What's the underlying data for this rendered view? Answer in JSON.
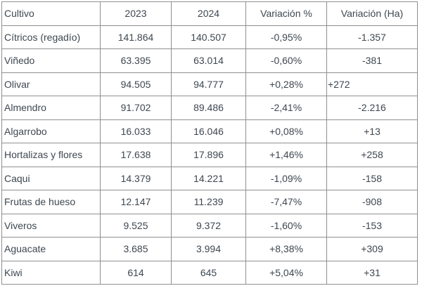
{
  "colors": {
    "border": "#8f8f8f",
    "text": "#3e4750",
    "background": "#ffffff"
  },
  "chart_data": {
    "type": "table",
    "title": "",
    "columns": [
      "Cultivo",
      "2023",
      "2024",
      "Variación %",
      "Variación (Ha)"
    ],
    "rows": [
      [
        "Cítricos (regadío)",
        "141.864",
        "140.507",
        "-0,95%",
        "-1.357"
      ],
      [
        "Viñedo",
        "63.395",
        "63.014",
        "-0,60%",
        "-381"
      ],
      [
        "Olivar",
        "94.505",
        "94.777",
        "+0,28%",
        "+272"
      ],
      [
        "Almendro",
        "91.702",
        "89.486",
        "-2,41%",
        "-2.216"
      ],
      [
        "Algarrobo",
        "16.033",
        "16.046",
        "+0,08%",
        "+13"
      ],
      [
        "Hortalizas y flores",
        "17.638",
        "17.896",
        "+1,46%",
        "+258"
      ],
      [
        "Caqui",
        "14.379",
        "14.221",
        "-1,09%",
        "-158"
      ],
      [
        "Frutas de hueso",
        "12.147",
        "11.239",
        "-7,47%",
        "-908"
      ],
      [
        "Viveros",
        "9.525",
        "9.372",
        "-1,60%",
        "-153"
      ],
      [
        "Aguacate",
        "3.685",
        "3.994",
        "+8,38%",
        "+309"
      ],
      [
        "Kiwi",
        "614",
        "645",
        "+5,04%",
        "+31"
      ]
    ]
  }
}
